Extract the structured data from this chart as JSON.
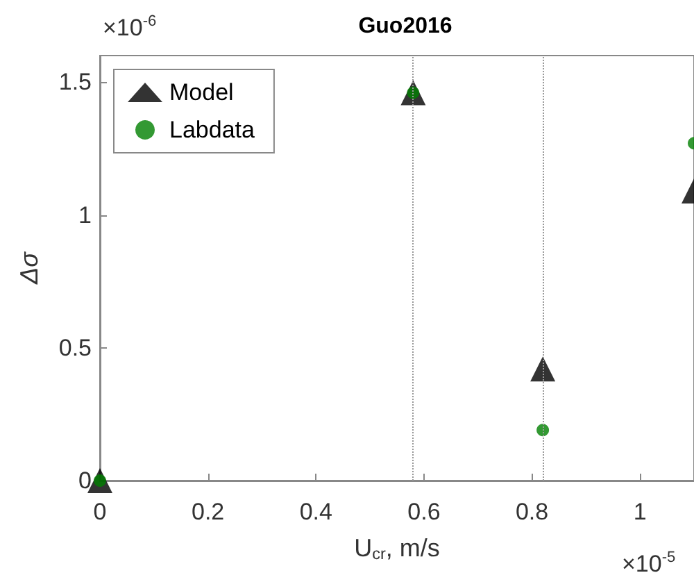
{
  "chart_data": {
    "type": "scatter",
    "title": "Guo2016",
    "xlabel": "U$_{cr}$, m/s",
    "ylabel": "Δσ",
    "x": [
      0,
      0.58,
      0.82,
      1.1
    ],
    "series": [
      {
        "name": "Model",
        "color": "#000000",
        "marker": "triangle",
        "values": [
          0,
          1.46,
          0.42,
          1.09
        ]
      },
      {
        "name": "Labdata",
        "color": "#008000",
        "marker": "circle",
        "values": [
          0,
          1.46,
          0.19,
          1.27
        ]
      }
    ],
    "xlim": [
      0,
      1.1
    ],
    "xticks": [
      0,
      0.2,
      0.4,
      0.6,
      0.8,
      1
    ],
    "ylim": [
      0,
      1.6
    ],
    "yticks": [
      0,
      0.5,
      1,
      1.5
    ],
    "ref_lines": [
      {
        "axis": "x",
        "value": 0.58,
        "color": "#999999",
        "line_style": "dotted"
      },
      {
        "axis": "x",
        "value": 0.82,
        "color": "#999999",
        "line_style": "dotted"
      }
    ],
    "annotations": [
      "×10$^{-6}$",
      "×10$^{-5}$"
    ],
    "legend": "top left",
    "grid": false
  }
}
